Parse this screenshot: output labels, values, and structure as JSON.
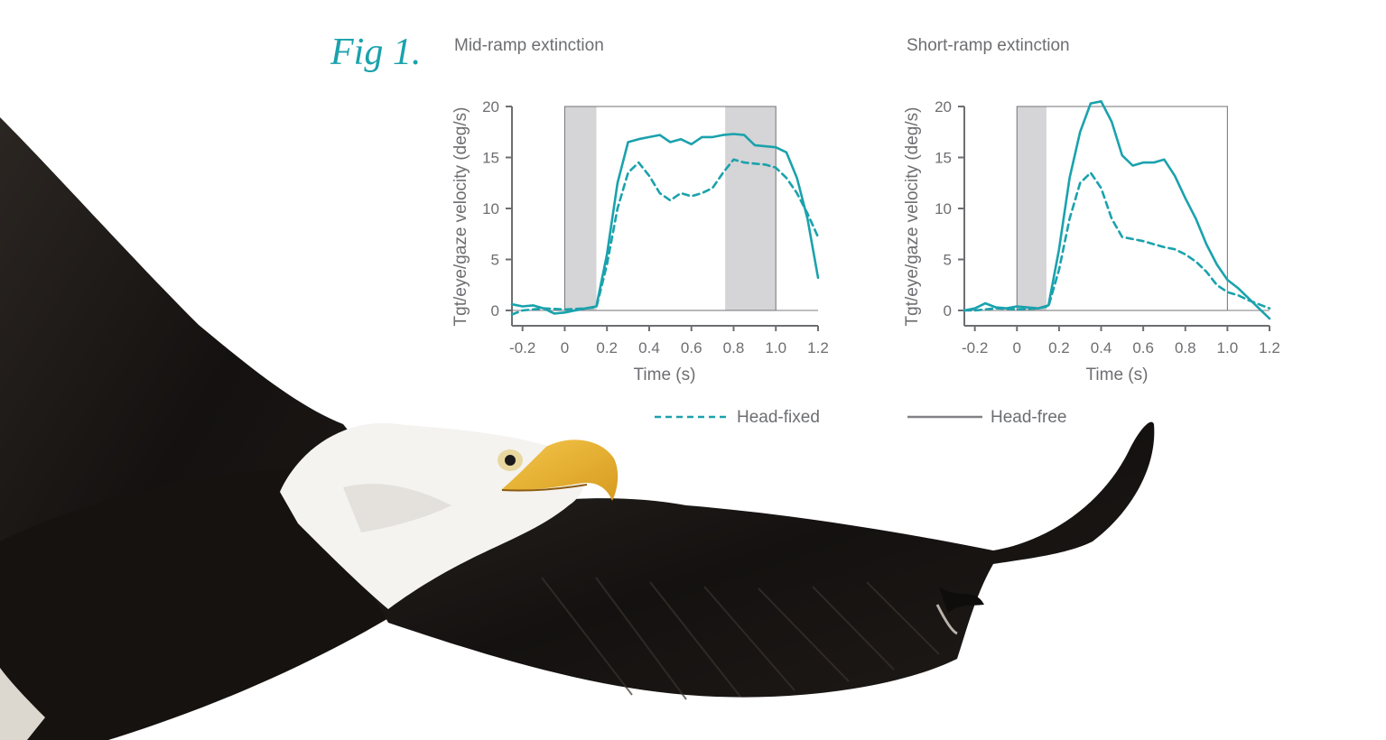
{
  "figure_label": "Fig 1.",
  "colors": {
    "series": "#1aa2ad",
    "shade": "#d5d4d6",
    "axis": "#6d6e71",
    "legend_solid": "#808285"
  },
  "chart_data": [
    {
      "type": "line",
      "title": "Mid-ramp extinction",
      "xlabel": "Time (s)",
      "ylabel": "Tgt/eye/gaze velocity (deg/s)",
      "xlim": [
        -0.25,
        1.2
      ],
      "ylim": [
        -1.5,
        20
      ],
      "xticks": [
        -0.2,
        0,
        0.2,
        0.4,
        0.6,
        0.8,
        1.0,
        1.2
      ],
      "xtick_labels": [
        "-0.2",
        "0",
        "0.2",
        "0.4",
        "0.6",
        "0.8",
        "1.0",
        "1.2"
      ],
      "yticks": [
        0,
        5,
        10,
        15,
        20
      ],
      "ytick_labels": [
        "0",
        "5",
        "10",
        "15",
        "20"
      ],
      "target_window": [
        0,
        1.0
      ],
      "shaded_regions": [
        [
          0,
          0.15
        ],
        [
          0.76,
          1.0
        ]
      ],
      "grid": false,
      "series": [
        {
          "name": "Head-fixed",
          "style": "dashed",
          "x": [
            -0.25,
            -0.2,
            -0.1,
            0,
            0.1,
            0.15,
            0.2,
            0.25,
            0.3,
            0.35,
            0.4,
            0.45,
            0.5,
            0.55,
            0.6,
            0.65,
            0.7,
            0.75,
            0.8,
            0.85,
            0.9,
            0.95,
            1.0,
            1.05,
            1.1,
            1.15,
            1.2
          ],
          "y": [
            -0.4,
            0,
            0.2,
            0.1,
            0.2,
            0.3,
            4.5,
            10,
            13.5,
            14.5,
            13.2,
            11.5,
            10.8,
            11.5,
            11.2,
            11.5,
            12,
            13.5,
            14.8,
            14.5,
            14.4,
            14.3,
            14,
            13,
            11.5,
            9.5,
            7.2
          ]
        },
        {
          "name": "Head-free",
          "style": "solid",
          "x": [
            -0.25,
            -0.2,
            -0.15,
            -0.1,
            -0.05,
            0,
            0.1,
            0.15,
            0.2,
            0.25,
            0.3,
            0.35,
            0.4,
            0.45,
            0.5,
            0.55,
            0.6,
            0.65,
            0.7,
            0.75,
            0.8,
            0.85,
            0.9,
            0.95,
            1.0,
            1.05,
            1.1,
            1.15,
            1.2
          ],
          "y": [
            0.6,
            0.4,
            0.5,
            0.2,
            -0.3,
            -0.2,
            0.2,
            0.4,
            5.5,
            12.5,
            16.5,
            16.8,
            17,
            17.2,
            16.5,
            16.8,
            16.3,
            17,
            17,
            17.2,
            17.3,
            17.2,
            16.2,
            16.1,
            16,
            15.5,
            13,
            9,
            3.2
          ]
        }
      ]
    },
    {
      "type": "line",
      "title": "Short-ramp extinction",
      "xlabel": "Time (s)",
      "ylabel": "Tgt/eye/gaze velocity (deg/s)",
      "xlim": [
        -0.25,
        1.2
      ],
      "ylim": [
        -1.5,
        20
      ],
      "xticks": [
        -0.2,
        0,
        0.2,
        0.4,
        0.6,
        0.8,
        1.0,
        1.2
      ],
      "xtick_labels": [
        "-0.2",
        "0",
        "0.2",
        "0.4",
        "0.6",
        "0.8",
        "1.0",
        "1.2"
      ],
      "yticks": [
        0,
        5,
        10,
        15,
        20
      ],
      "ytick_labels": [
        "0",
        "5",
        "10",
        "15",
        "20"
      ],
      "target_window": [
        0,
        1.0
      ],
      "shaded_regions": [
        [
          0,
          0.14
        ]
      ],
      "grid": false,
      "series": [
        {
          "name": "Head-fixed",
          "style": "dashed",
          "x": [
            -0.25,
            -0.2,
            -0.1,
            0,
            0.1,
            0.15,
            0.2,
            0.25,
            0.3,
            0.35,
            0.4,
            0.45,
            0.5,
            0.55,
            0.6,
            0.65,
            0.7,
            0.75,
            0.8,
            0.85,
            0.9,
            0.95,
            1.0,
            1.05,
            1.1,
            1.15,
            1.2
          ],
          "y": [
            0,
            0,
            0.2,
            0.1,
            0.2,
            0.4,
            4,
            9,
            12.5,
            13.5,
            12,
            9,
            7.2,
            7,
            6.8,
            6.5,
            6.2,
            6,
            5.5,
            4.8,
            3.8,
            2.5,
            1.8,
            1.5,
            1,
            0.6,
            0.2
          ]
        },
        {
          "name": "Head-free",
          "style": "solid",
          "x": [
            -0.25,
            -0.2,
            -0.15,
            -0.1,
            -0.05,
            0,
            0.1,
            0.15,
            0.2,
            0.25,
            0.3,
            0.35,
            0.4,
            0.45,
            0.5,
            0.55,
            0.6,
            0.65,
            0.7,
            0.75,
            0.8,
            0.85,
            0.9,
            0.95,
            1.0,
            1.05,
            1.1,
            1.15,
            1.2
          ],
          "y": [
            0,
            0.2,
            0.7,
            0.3,
            0.2,
            0.4,
            0.2,
            0.5,
            6,
            13,
            17.5,
            20.3,
            20.5,
            18.5,
            15.2,
            14.2,
            14.5,
            14.5,
            14.8,
            13.2,
            11,
            9,
            6.5,
            4.5,
            3,
            2.2,
            1.2,
            0.2,
            -0.8
          ]
        }
      ]
    }
  ]
}
